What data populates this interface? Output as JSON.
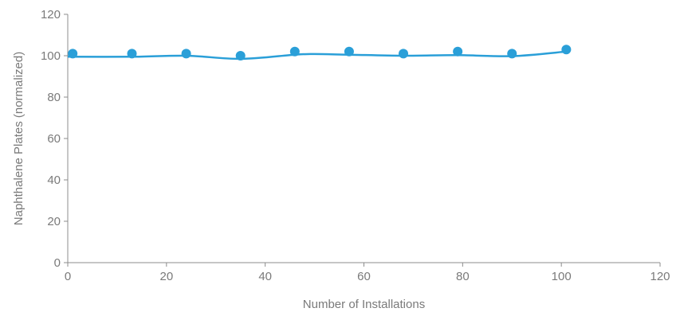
{
  "chart_data": {
    "type": "scatter",
    "xlabel": "Number of Installations",
    "ylabel": "Naphthalene Plates (normalized)",
    "xlim": [
      0,
      120
    ],
    "ylim": [
      0,
      120
    ],
    "xticks": [
      0,
      20,
      40,
      60,
      80,
      100,
      120
    ],
    "yticks": [
      0,
      20,
      40,
      60,
      80,
      100,
      120
    ],
    "grid": false,
    "colors": {
      "series": "#2a9fd8",
      "axis": "#8c8c8c",
      "text": "#7a7a7a"
    },
    "series": [
      {
        "type": "scatter",
        "x": [
          1,
          13,
          24,
          35,
          46,
          57,
          68,
          79,
          90,
          101
        ],
        "y": [
          101,
          101,
          101,
          100,
          102,
          102,
          101,
          102,
          101,
          103
        ]
      },
      {
        "type": "line",
        "x": [
          0,
          13,
          24,
          35,
          46,
          50,
          57,
          68,
          79,
          90,
          101
        ],
        "y": [
          99.5,
          99.5,
          100,
          98.5,
          100.5,
          100.8,
          100.5,
          100,
          100.3,
          99.8,
          102
        ]
      }
    ]
  }
}
